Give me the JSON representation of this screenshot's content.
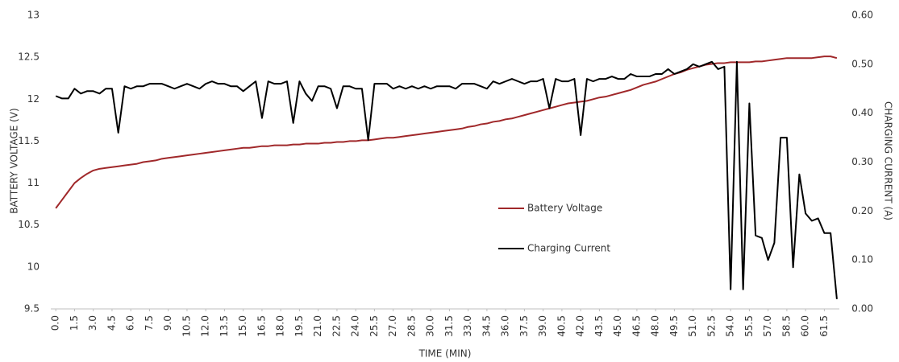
{
  "chart_data": {
    "type": "line",
    "xlabel": "TIME (MIN)",
    "ylabel": "BATTERY VOLTAGE (V)",
    "y2label": "CHARGING CURRENT (A)",
    "x": [
      0,
      0.5,
      1,
      1.5,
      2,
      2.5,
      3,
      3.5,
      4,
      4.5,
      5,
      5.5,
      6,
      6.5,
      7,
      7.5,
      8,
      8.5,
      9,
      9.5,
      10,
      10.5,
      11,
      11.5,
      12,
      12.5,
      13,
      13.5,
      14,
      14.5,
      15,
      15.5,
      16,
      16.5,
      17,
      17.5,
      18,
      18.5,
      19,
      19.5,
      20,
      20.5,
      21,
      21.5,
      22,
      22.5,
      23,
      23.5,
      24,
      24.5,
      25,
      25.5,
      26,
      26.5,
      27,
      27.5,
      28,
      28.5,
      29,
      29.5,
      30,
      30.5,
      31,
      31.5,
      32,
      32.5,
      33,
      33.5,
      34,
      34.5,
      35,
      35.5,
      36,
      36.5,
      37,
      37.5,
      38,
      38.5,
      39,
      39.5,
      40,
      40.5,
      41,
      41.5,
      42,
      42.5,
      43,
      43.5,
      44,
      44.5,
      45,
      45.5,
      46,
      46.5,
      47,
      47.5,
      48,
      48.5,
      49,
      49.5,
      50,
      50.5,
      51,
      51.5,
      52,
      52.5,
      53,
      53.5,
      54,
      54.5,
      55,
      55.5,
      56,
      56.5,
      57,
      57.5,
      58,
      58.5,
      59,
      59.5,
      60,
      60.5,
      61,
      61.5,
      62,
      62.5
    ],
    "series": [
      {
        "name": "Battery Voltage",
        "color": "#a0282a",
        "axis": "y",
        "values": [
          10.7,
          10.8,
          10.9,
          11.0,
          11.06,
          11.11,
          11.15,
          11.17,
          11.18,
          11.19,
          11.2,
          11.21,
          11.22,
          11.23,
          11.25,
          11.26,
          11.27,
          11.29,
          11.3,
          11.31,
          11.32,
          11.33,
          11.34,
          11.35,
          11.36,
          11.37,
          11.38,
          11.39,
          11.4,
          11.41,
          11.42,
          11.42,
          11.43,
          11.44,
          11.44,
          11.45,
          11.45,
          11.45,
          11.46,
          11.46,
          11.47,
          11.47,
          11.47,
          11.48,
          11.48,
          11.49,
          11.49,
          11.5,
          11.5,
          11.51,
          11.51,
          11.52,
          11.53,
          11.54,
          11.54,
          11.55,
          11.56,
          11.57,
          11.58,
          11.59,
          11.6,
          11.61,
          11.62,
          11.63,
          11.64,
          11.65,
          11.67,
          11.68,
          11.7,
          11.71,
          11.73,
          11.74,
          11.76,
          11.77,
          11.79,
          11.81,
          11.83,
          11.85,
          11.87,
          11.89,
          11.91,
          11.93,
          11.95,
          11.96,
          11.97,
          11.98,
          12.0,
          12.02,
          12.03,
          12.05,
          12.07,
          12.09,
          12.11,
          12.14,
          12.17,
          12.19,
          12.21,
          12.24,
          12.27,
          12.3,
          12.32,
          12.35,
          12.37,
          12.39,
          12.41,
          12.42,
          12.43,
          12.43,
          12.44,
          12.44,
          12.44,
          12.44,
          12.45,
          12.45,
          12.46,
          12.47,
          12.48,
          12.49,
          12.49,
          12.49,
          12.49,
          12.49,
          12.5,
          12.51,
          12.51,
          12.49
        ]
      },
      {
        "name": "Charging Current",
        "color": "#000000",
        "axis": "y2",
        "values": [
          0.435,
          0.43,
          0.43,
          0.45,
          0.44,
          0.445,
          0.445,
          0.44,
          0.45,
          0.45,
          0.36,
          0.455,
          0.45,
          0.455,
          0.455,
          0.46,
          0.46,
          0.46,
          0.455,
          0.45,
          0.455,
          0.46,
          0.455,
          0.45,
          0.46,
          0.465,
          0.46,
          0.46,
          0.455,
          0.455,
          0.445,
          0.455,
          0.465,
          0.39,
          0.465,
          0.46,
          0.46,
          0.465,
          0.38,
          0.465,
          0.44,
          0.425,
          0.455,
          0.455,
          0.45,
          0.41,
          0.455,
          0.455,
          0.45,
          0.45,
          0.345,
          0.46,
          0.46,
          0.46,
          0.45,
          0.455,
          0.45,
          0.455,
          0.45,
          0.455,
          0.45,
          0.455,
          0.455,
          0.455,
          0.45,
          0.46,
          0.46,
          0.46,
          0.455,
          0.45,
          0.465,
          0.46,
          0.465,
          0.47,
          0.465,
          0.46,
          0.465,
          0.465,
          0.47,
          0.41,
          0.47,
          0.465,
          0.465,
          0.47,
          0.355,
          0.47,
          0.465,
          0.47,
          0.47,
          0.475,
          0.47,
          0.47,
          0.48,
          0.475,
          0.475,
          0.475,
          0.48,
          0.48,
          0.49,
          0.48,
          0.485,
          0.49,
          0.5,
          0.495,
          0.5,
          0.505,
          0.49,
          0.495,
          0.04,
          0.505,
          0.04,
          0.42,
          0.15,
          0.145,
          0.1,
          0.135,
          0.35,
          0.35,
          0.085,
          0.275,
          0.195,
          0.18,
          0.185,
          0.155,
          0.155,
          0.02
        ]
      }
    ],
    "xlim": [
      -0.4,
      62.7
    ],
    "xticks": [
      {
        "value": 0,
        "label": "0.0"
      },
      1.5,
      {
        "value": 3,
        "label": "3.0"
      },
      4.5,
      {
        "value": 6,
        "label": "6.0"
      },
      7.5,
      {
        "value": 9,
        "label": "9.0"
      },
      10.5,
      {
        "value": 12,
        "label": "12.0"
      },
      13.5,
      {
        "value": 15,
        "label": "15.0"
      },
      16.5,
      {
        "value": 18,
        "label": "18.0"
      },
      19.5,
      {
        "value": 21,
        "label": "21.0"
      },
      22.5,
      {
        "value": 24,
        "label": "24.0"
      },
      25.5,
      {
        "value": 27,
        "label": "27.0"
      },
      28.5,
      {
        "value": 30,
        "label": "30.0"
      },
      31.5,
      {
        "value": 33,
        "label": "33.0"
      },
      34.5,
      {
        "value": 36,
        "label": "36.0"
      },
      37.5,
      {
        "value": 39,
        "label": "39.0"
      },
      40.5,
      {
        "value": 42,
        "label": "42.0"
      },
      43.5,
      {
        "value": 45,
        "label": "45.0"
      },
      46.5,
      {
        "value": 48,
        "label": "48.0"
      },
      49.5,
      {
        "value": 51,
        "label": "51.0"
      },
      52.5,
      {
        "value": 54,
        "label": "54.0"
      },
      55.5,
      {
        "value": 57,
        "label": "57.0"
      },
      58.5,
      {
        "value": 60,
        "label": "60.0"
      },
      61.5
    ],
    "ylim": [
      9.5,
      13
    ],
    "yticks": [
      9.5,
      10,
      10.5,
      11,
      11.5,
      12,
      12.5,
      13
    ],
    "y2lim": [
      0,
      0.6
    ],
    "y2ticks": [
      {
        "value": 0,
        "label": "0.00"
      },
      {
        "value": 0.1,
        "label": "0.10"
      },
      {
        "value": 0.2,
        "label": "0.20"
      },
      {
        "value": 0.3,
        "label": "0.30"
      },
      {
        "value": 0.4,
        "label": "0.40"
      },
      {
        "value": 0.5,
        "label": "0.50"
      },
      {
        "value": 0.6,
        "label": "0.60"
      }
    ],
    "grid": false,
    "legend": "center"
  }
}
